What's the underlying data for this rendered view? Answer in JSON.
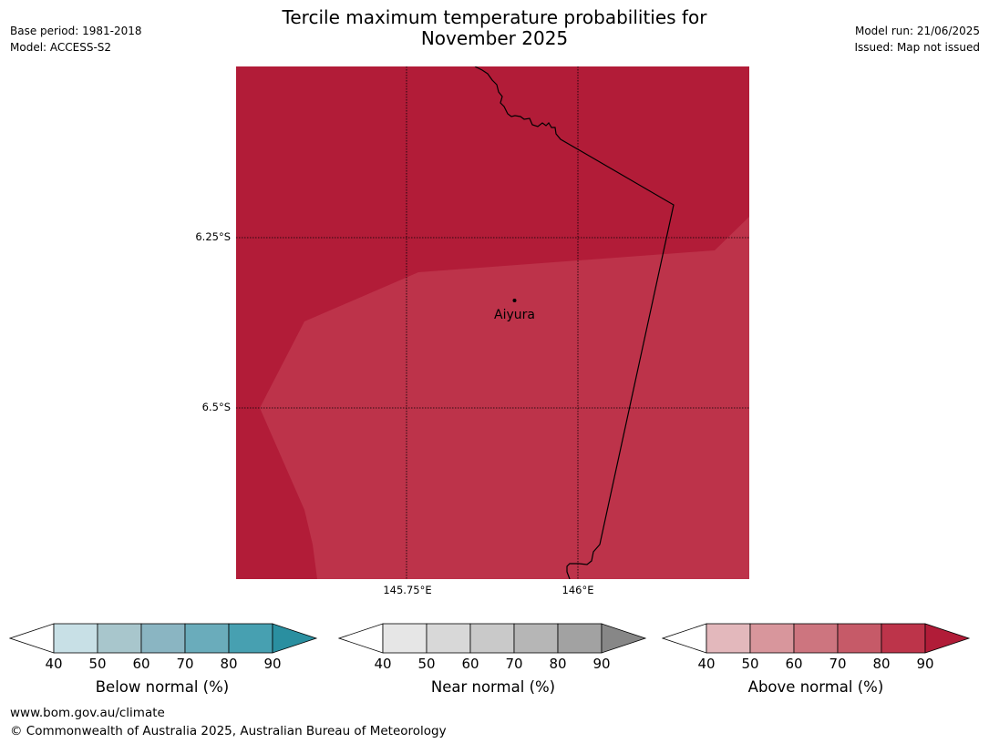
{
  "title": {
    "line1": "Tercile maximum temperature probabilities for",
    "line2": "November 2025"
  },
  "meta_left": {
    "base_period": "Base period: 1981-2018",
    "model": "Model: ACCESS-S2"
  },
  "meta_right": {
    "model_run": "Model run: 21/06/2025",
    "issued": "Issued: Map not issued"
  },
  "map": {
    "lat_labels": [
      "6.25°S",
      "6.5°S"
    ],
    "lon_labels": [
      "145.75°E",
      "146°E"
    ],
    "place": {
      "name": "Aiyura"
    },
    "colors": {
      "dark_region": "#b21c38",
      "light_region": "#bd334a",
      "border": "#000000"
    }
  },
  "colorbars": [
    {
      "label": "Below normal (%)",
      "ticks": [
        "40",
        "50",
        "60",
        "70",
        "80",
        "90"
      ],
      "colors": [
        "#ffffff",
        "#c8e0e6",
        "#a8c6cc",
        "#8ab5c2",
        "#6aacbb",
        "#47a0b1",
        "#2a8fa0"
      ]
    },
    {
      "label": "Near normal (%)",
      "ticks": [
        "40",
        "50",
        "60",
        "70",
        "80",
        "90"
      ],
      "colors": [
        "#ffffff",
        "#e6e6e6",
        "#d8d8d8",
        "#c9c9c9",
        "#b6b6b6",
        "#a2a2a2",
        "#878787"
      ]
    },
    {
      "label": "Above normal (%)",
      "ticks": [
        "40",
        "50",
        "60",
        "70",
        "80",
        "90"
      ],
      "colors": [
        "#ffffff",
        "#e3b8bc",
        "#d8969c",
        "#cd757f",
        "#c65a68",
        "#bd344a",
        "#b11c38"
      ]
    }
  ],
  "footer": {
    "url": "www.bom.gov.au/climate",
    "copyright": "© Commonwealth of Australia 2025, Australian Bureau of Meteorology"
  }
}
